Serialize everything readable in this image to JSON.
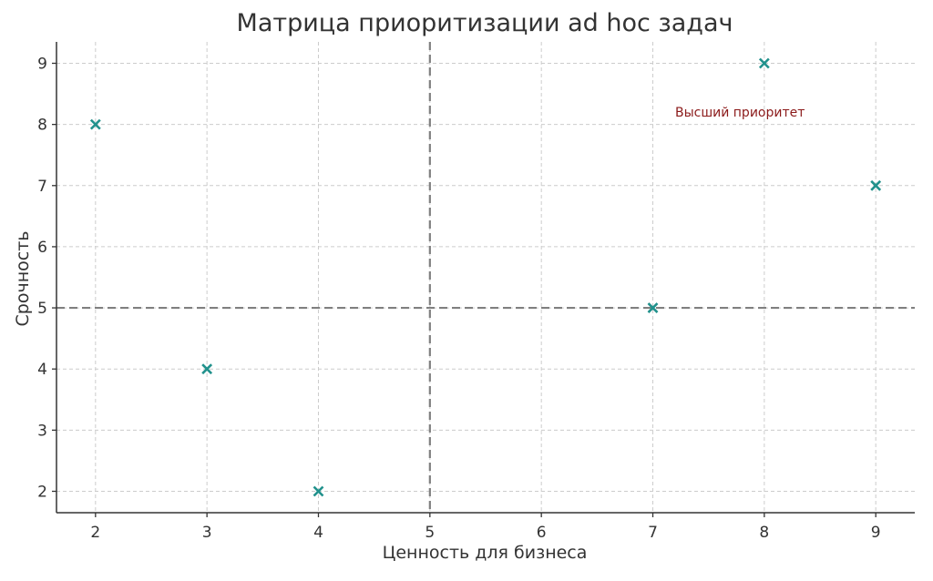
{
  "chart_data": {
    "type": "scatter",
    "title": "Матрица приоритизации ad hoc задач",
    "xlabel": "Ценность для бизнеса",
    "ylabel": "Срочность",
    "xlim": [
      1.65,
      9.35
    ],
    "ylim": [
      1.65,
      9.35
    ],
    "x_ticks": [
      2,
      3,
      4,
      5,
      6,
      7,
      8,
      9
    ],
    "y_ticks": [
      2,
      3,
      4,
      5,
      6,
      7,
      8,
      9
    ],
    "grid": true,
    "series": [
      {
        "marker": "x",
        "color": "#21918c",
        "points": [
          {
            "x": 2,
            "y": 8
          },
          {
            "x": 3,
            "y": 4
          },
          {
            "x": 4,
            "y": 2
          },
          {
            "x": 7,
            "y": 5
          },
          {
            "x": 8,
            "y": 9
          },
          {
            "x": 9,
            "y": 7
          }
        ]
      }
    ],
    "threshold_lines": {
      "x": 5,
      "y": 5,
      "color": "#808080",
      "style": "dashed"
    },
    "annotations": [
      {
        "text": "Высший приоритет",
        "x": 7.2,
        "y": 8.2,
        "color": "#8b1a1a"
      }
    ]
  }
}
